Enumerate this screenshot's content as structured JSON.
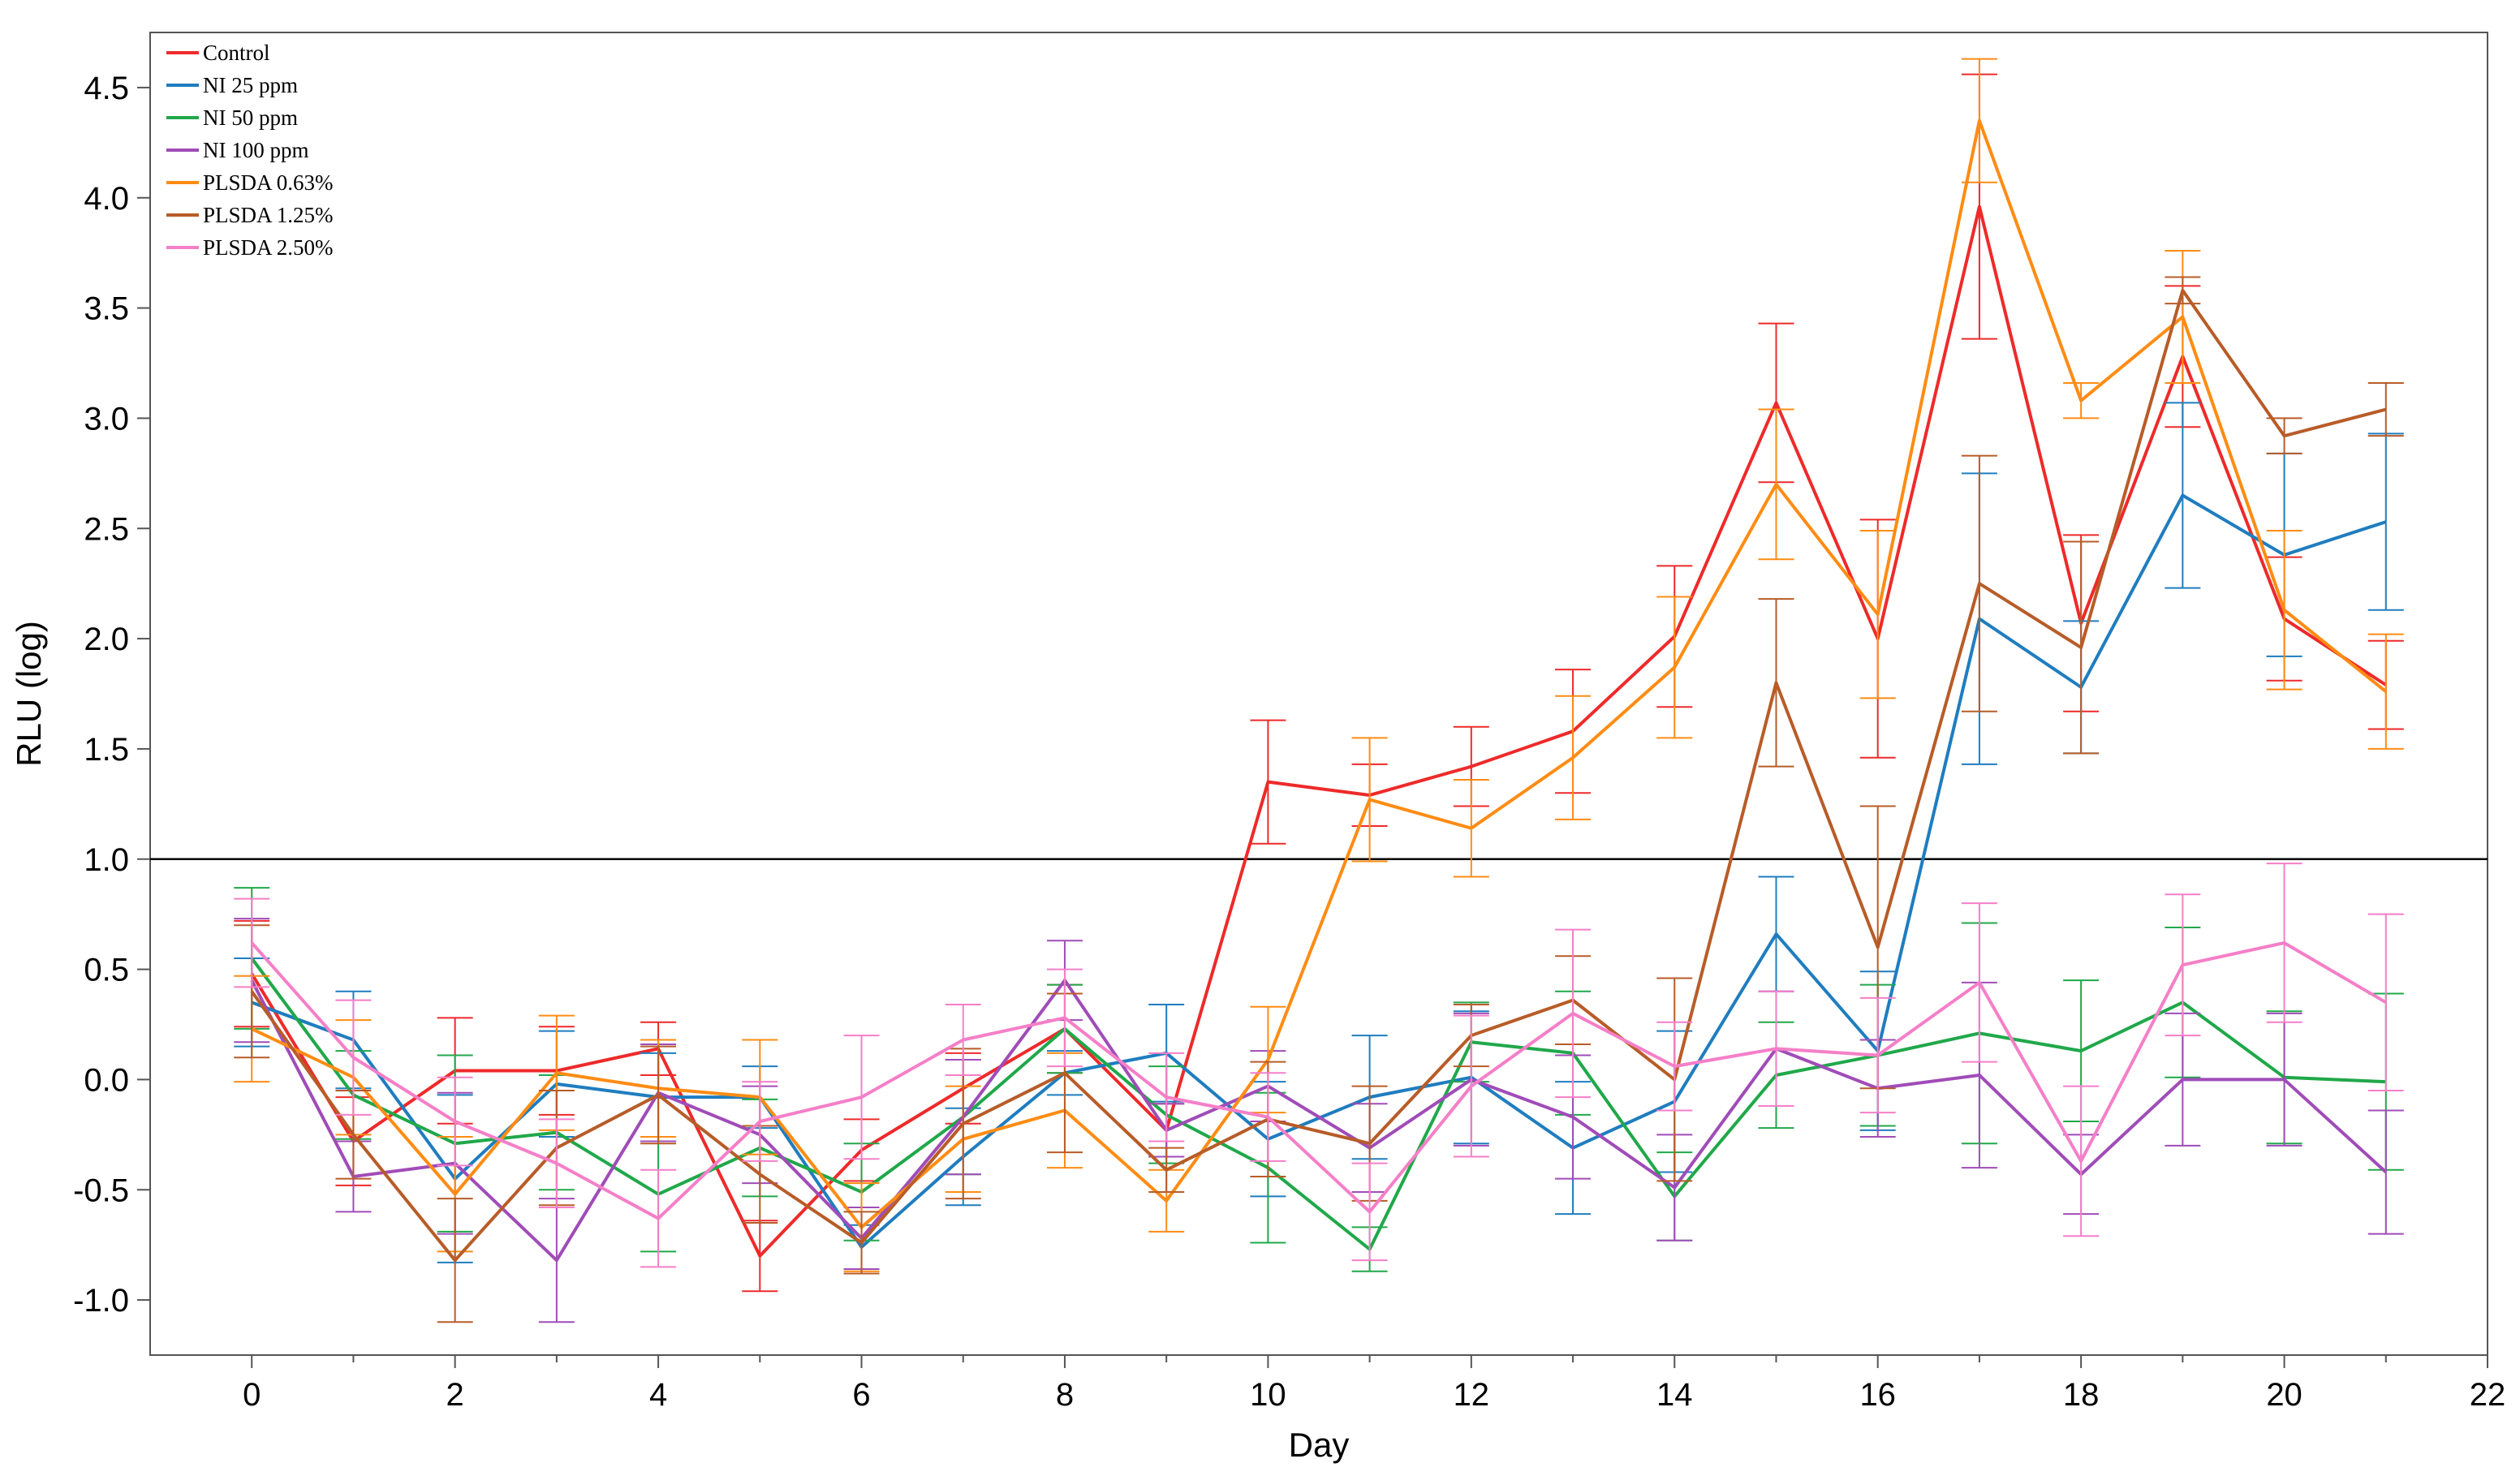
{
  "chart_data": {
    "type": "line",
    "title": "",
    "xlabel": "Day",
    "ylabel": "RLU (log)",
    "xlim": [
      -1,
      22
    ],
    "ylim": [
      -1.25,
      4.75
    ],
    "xticks": [
      0,
      2,
      4,
      6,
      8,
      10,
      12,
      14,
      16,
      18,
      20,
      22
    ],
    "xtick_labels": [
      "0",
      "2",
      "4",
      "6",
      "8",
      "10",
      "12",
      "14",
      "16",
      "18",
      "20",
      "22"
    ],
    "yticks": [
      -1.0,
      -0.5,
      0.0,
      0.5,
      1.0,
      1.5,
      2.0,
      2.5,
      3.0,
      3.5,
      4.0,
      4.5
    ],
    "ytick_labels": [
      "-1.0",
      "-0.5",
      "0.0",
      "0.5",
      "1.0",
      "1.5",
      "2.0",
      "2.5",
      "3.0",
      "3.5",
      "4.0",
      "4.5"
    ],
    "reference_line": 1.0,
    "legend_position": "top-left",
    "x": [
      0,
      1,
      2,
      3,
      4,
      5,
      6,
      7,
      8,
      9,
      10,
      11,
      12,
      13,
      14,
      15,
      16,
      17,
      18,
      19,
      20,
      21
    ],
    "series": [
      {
        "name": "Control",
        "color": "#ee2a2a",
        "values": [
          0.48,
          -0.28,
          0.04,
          0.04,
          0.14,
          -0.8,
          -0.32,
          -0.04,
          0.23,
          -0.23,
          1.35,
          1.29,
          1.42,
          1.58,
          2.01,
          3.07,
          2.0,
          3.96,
          2.07,
          3.28,
          2.09,
          1.79
        ],
        "errors": [
          0.24,
          0.2,
          0.24,
          0.2,
          0.12,
          0.16,
          0.14,
          0.16,
          0.2,
          0.12,
          0.28,
          0.14,
          0.18,
          0.28,
          0.32,
          0.36,
          0.54,
          0.6,
          0.4,
          0.32,
          0.28,
          0.2
        ]
      },
      {
        "name": "NI 25 ppm",
        "color": "#1f7dbf",
        "values": [
          0.35,
          0.18,
          -0.45,
          -0.02,
          -0.08,
          -0.08,
          -0.76,
          -0.35,
          0.03,
          0.12,
          -0.27,
          -0.08,
          0.01,
          -0.31,
          -0.1,
          0.66,
          0.13,
          2.09,
          1.78,
          2.65,
          2.38,
          2.53
        ],
        "errors": [
          0.2,
          0.22,
          0.38,
          0.24,
          0.2,
          0.14,
          0.1,
          0.22,
          0.1,
          0.22,
          0.26,
          0.28,
          0.3,
          0.3,
          0.32,
          0.26,
          0.36,
          0.66,
          0.3,
          0.42,
          0.46,
          0.4
        ]
      },
      {
        "name": "NI 50 ppm",
        "color": "#20a84a",
        "values": [
          0.55,
          -0.07,
          -0.29,
          -0.24,
          -0.52,
          -0.31,
          -0.51,
          -0.17,
          0.23,
          -0.16,
          -0.4,
          -0.77,
          0.17,
          0.12,
          -0.53,
          0.02,
          0.11,
          0.21,
          0.13,
          0.35,
          0.01,
          -0.01
        ],
        "errors": [
          0.32,
          0.2,
          0.4,
          0.26,
          0.26,
          0.22,
          0.22,
          0.26,
          0.2,
          0.22,
          0.34,
          0.1,
          0.18,
          0.28,
          0.2,
          0.24,
          0.32,
          0.5,
          0.32,
          0.34,
          0.3,
          0.4
        ]
      },
      {
        "name": "NI 100 ppm",
        "color": "#a04cb8",
        "values": [
          0.45,
          -0.44,
          -0.38,
          -0.82,
          -0.06,
          -0.25,
          -0.72,
          -0.17,
          0.45,
          -0.23,
          -0.03,
          -0.31,
          0.0,
          -0.17,
          -0.49,
          0.14,
          -0.04,
          0.02,
          -0.43,
          0.0,
          0.0,
          -0.42
        ],
        "errors": [
          0.28,
          0.16,
          0.32,
          0.28,
          0.22,
          0.22,
          0.14,
          0.26,
          0.18,
          0.12,
          0.16,
          0.2,
          0.3,
          0.28,
          0.24,
          0.26,
          0.22,
          0.42,
          0.18,
          0.3,
          0.3,
          0.28
        ]
      },
      {
        "name": "PLSDA 0.63%",
        "color": "#ff8c14",
        "values": [
          0.23,
          0.01,
          -0.52,
          0.03,
          -0.04,
          -0.08,
          -0.67,
          -0.27,
          -0.14,
          -0.55,
          0.09,
          1.27,
          1.14,
          1.46,
          1.87,
          2.7,
          2.11,
          4.35,
          3.08,
          3.46,
          2.13,
          1.76
        ],
        "errors": [
          0.24,
          0.26,
          0.26,
          0.26,
          0.22,
          0.26,
          0.2,
          0.24,
          0.26,
          0.14,
          0.24,
          0.28,
          0.22,
          0.28,
          0.32,
          0.34,
          0.38,
          0.28,
          0.08,
          0.3,
          0.36,
          0.26
        ]
      },
      {
        "name": "PLSDA 1.25%",
        "color": "#b85c28",
        "values": [
          0.4,
          -0.25,
          -0.82,
          -0.31,
          -0.07,
          -0.43,
          -0.74,
          -0.2,
          0.03,
          -0.41,
          -0.18,
          -0.29,
          0.2,
          0.36,
          0.0,
          1.8,
          0.6,
          2.25,
          1.96,
          3.58,
          2.92,
          3.04
        ],
        "errors": [
          0.3,
          0.2,
          0.28,
          0.26,
          0.22,
          0.22,
          0.14,
          0.34,
          0.36,
          0.1,
          0.26,
          0.26,
          0.14,
          0.2,
          0.46,
          0.38,
          0.64,
          0.58,
          0.48,
          0.06,
          0.08,
          0.12
        ]
      },
      {
        "name": "PLSDA 2.50%",
        "color": "#f57fc8",
        "values": [
          0.62,
          0.1,
          -0.19,
          -0.38,
          -0.63,
          -0.19,
          -0.08,
          0.18,
          0.28,
          -0.08,
          -0.17,
          -0.6,
          -0.03,
          0.3,
          0.06,
          0.14,
          0.11,
          0.44,
          -0.37,
          0.52,
          0.62,
          0.35
        ],
        "errors": [
          0.2,
          0.26,
          0.2,
          0.2,
          0.22,
          0.18,
          0.28,
          0.16,
          0.22,
          0.2,
          0.2,
          0.22,
          0.32,
          0.38,
          0.2,
          0.26,
          0.26,
          0.36,
          0.34,
          0.32,
          0.36,
          0.4
        ]
      }
    ]
  }
}
